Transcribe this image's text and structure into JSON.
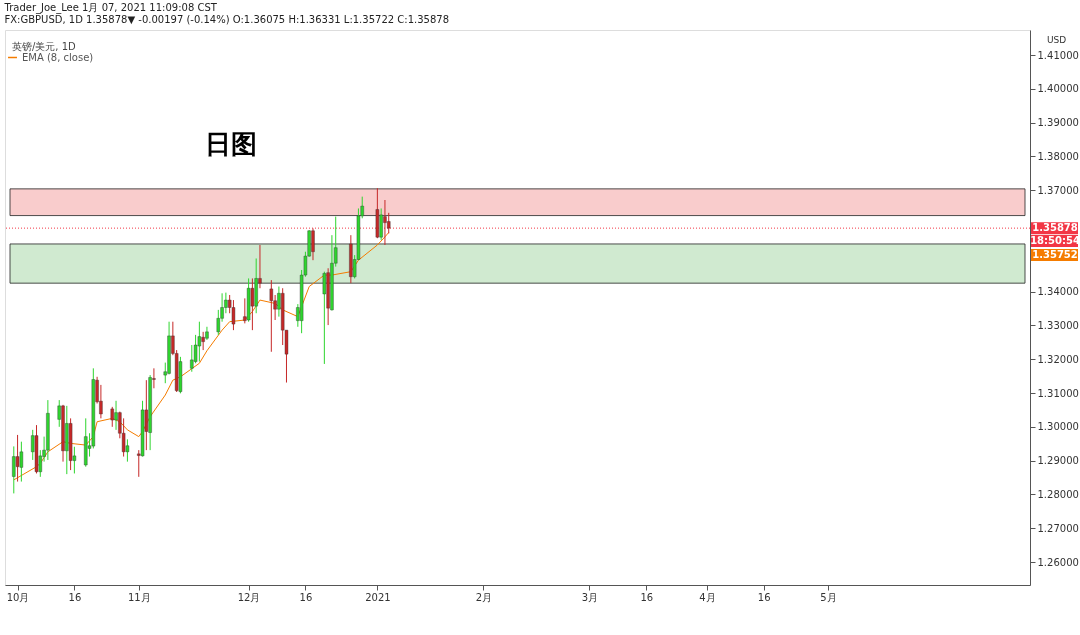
{
  "chart_data": {
    "type": "candlestick",
    "title": "Trader_Joe_Lee 1月 07, 2021 11:09:08 CST",
    "subtitle": "FX:GBPUSD, 1D 1.35878▼ -0.00197 (-0.14%) O:1.36075 H:1.36331 L:1.35722 C:1.35878",
    "ylabel": "USD",
    "x": [
      "2020-09-30",
      "2020-10-01",
      "2020-10-02",
      "2020-10-05",
      "2020-10-06",
      "2020-10-07",
      "2020-10-08",
      "2020-10-09",
      "2020-10-12",
      "2020-10-13",
      "2020-10-14",
      "2020-10-15",
      "2020-10-16",
      "2020-10-19",
      "2020-10-20",
      "2020-10-21",
      "2020-10-22",
      "2020-10-23",
      "2020-10-26",
      "2020-10-27",
      "2020-10-28",
      "2020-10-29",
      "2020-10-30",
      "2020-11-02",
      "2020-11-03",
      "2020-11-04",
      "2020-11-05",
      "2020-11-06",
      "2020-11-09",
      "2020-11-10",
      "2020-11-11",
      "2020-11-12",
      "2020-11-13",
      "2020-11-16",
      "2020-11-17",
      "2020-11-18",
      "2020-11-19",
      "2020-11-20",
      "2020-11-23",
      "2020-11-24",
      "2020-11-25",
      "2020-11-26",
      "2020-11-27",
      "2020-11-30",
      "2020-12-01",
      "2020-12-02",
      "2020-12-03",
      "2020-12-04",
      "2020-12-07",
      "2020-12-08",
      "2020-12-09",
      "2020-12-10",
      "2020-12-11",
      "2020-12-14",
      "2020-12-15",
      "2020-12-16",
      "2020-12-17",
      "2020-12-18",
      "2020-12-21",
      "2020-12-22",
      "2020-12-23",
      "2020-12-24",
      "2020-12-28",
      "2020-12-29",
      "2020-12-30",
      "2020-12-31",
      "2021-01-04",
      "2021-01-05",
      "2021-01-06",
      "2021-01-07"
    ],
    "ohlc": [
      [
        1.2853,
        1.2942,
        1.2803,
        1.2912
      ],
      [
        1.2912,
        1.2976,
        1.2838,
        1.2882
      ],
      [
        1.288,
        1.2956,
        1.2838,
        1.2926
      ],
      [
        1.2926,
        1.2991,
        1.2902,
        1.2974
      ],
      [
        1.2974,
        1.3005,
        1.2862,
        1.2867
      ],
      [
        1.2867,
        1.2931,
        1.2852,
        1.2914
      ],
      [
        1.2912,
        1.2971,
        1.2897,
        1.2931
      ],
      [
        1.2931,
        1.3079,
        1.2902,
        1.304
      ],
      [
        1.3022,
        1.3079,
        1.3,
        1.3062
      ],
      [
        1.3062,
        1.3065,
        1.2897,
        1.2929
      ],
      [
        1.2929,
        1.3062,
        1.286,
        1.301
      ],
      [
        1.301,
        1.3025,
        1.2872,
        1.29
      ],
      [
        1.29,
        1.2941,
        1.2862,
        1.2914
      ],
      [
        1.2887,
        1.3025,
        1.2882,
        1.2971
      ],
      [
        1.2936,
        1.2981,
        1.2912,
        1.2944
      ],
      [
        1.2943,
        1.3173,
        1.2936,
        1.314
      ],
      [
        1.3138,
        1.3148,
        1.3069,
        1.3074
      ],
      [
        1.3076,
        1.3124,
        1.3025,
        1.3038
      ],
      [
        1.3053,
        1.3059,
        1.3,
        1.302
      ],
      [
        1.302,
        1.3077,
        1.2991,
        1.3042
      ],
      [
        1.3042,
        1.3045,
        1.2966,
        1.2981
      ],
      [
        1.2981,
        1.3025,
        1.2912,
        1.2926
      ],
      [
        1.2926,
        1.2963,
        1.2897,
        1.2944
      ],
      [
        1.292,
        1.2931,
        1.2852,
        1.2915
      ],
      [
        1.2914,
        1.3077,
        1.2912,
        1.305
      ],
      [
        1.305,
        1.3138,
        1.2931,
        1.2986
      ],
      [
        1.2983,
        1.3153,
        1.2931,
        1.3146
      ],
      [
        1.3143,
        1.3173,
        1.3114,
        1.314
      ],
      [
        1.3153,
        1.319,
        1.3129,
        1.3163
      ],
      [
        1.3158,
        1.3311,
        1.3155,
        1.3269
      ],
      [
        1.3269,
        1.3311,
        1.3212,
        1.3217
      ],
      [
        1.3217,
        1.3227,
        1.3103,
        1.3107
      ],
      [
        1.3104,
        1.3207,
        1.3099,
        1.3193
      ],
      [
        1.3173,
        1.3242,
        1.3163,
        1.3198
      ],
      [
        1.3193,
        1.3272,
        1.3188,
        1.3242
      ],
      [
        1.3239,
        1.3311,
        1.3193,
        1.3267
      ],
      [
        1.3265,
        1.3281,
        1.3227,
        1.3252
      ],
      [
        1.3262,
        1.3296,
        1.3257,
        1.3281
      ],
      [
        1.3281,
        1.3346,
        1.3272,
        1.3321
      ],
      [
        1.3321,
        1.3395,
        1.3311,
        1.3353
      ],
      [
        1.3353,
        1.3397,
        1.3336,
        1.3375
      ],
      [
        1.3375,
        1.339,
        1.3336,
        1.3353
      ],
      [
        1.3353,
        1.3375,
        1.3286,
        1.3304
      ],
      [
        1.3326,
        1.338,
        1.3306,
        1.3314
      ],
      [
        1.3316,
        1.3439,
        1.3311,
        1.341
      ],
      [
        1.341,
        1.3439,
        1.3286,
        1.3357
      ],
      [
        1.3357,
        1.3498,
        1.3336,
        1.3439
      ],
      [
        1.3439,
        1.3538,
        1.341,
        1.3425
      ],
      [
        1.3408,
        1.3434,
        1.3222,
        1.3373
      ],
      [
        1.3373,
        1.339,
        1.3316,
        1.3348
      ],
      [
        1.3348,
        1.3415,
        1.3326,
        1.3395
      ],
      [
        1.3395,
        1.341,
        1.3242,
        1.3286
      ],
      [
        1.3286,
        1.3286,
        1.3131,
        1.3215
      ],
      [
        1.3314,
        1.3363,
        1.3296,
        1.3353
      ],
      [
        1.3314,
        1.3464,
        1.3277,
        1.3449
      ],
      [
        1.3449,
        1.3518,
        1.3444,
        1.3505
      ],
      [
        1.3505,
        1.3582,
        1.3503,
        1.358
      ],
      [
        1.358,
        1.3587,
        1.3493,
        1.3518
      ],
      [
        1.3393,
        1.3459,
        1.3186,
        1.3454
      ],
      [
        1.3456,
        1.3469,
        1.3301,
        1.3351
      ],
      [
        1.3346,
        1.3567,
        1.3344,
        1.3484
      ],
      [
        1.3484,
        1.3622,
        1.3474,
        1.353
      ],
      [
        1.3541,
        1.3567,
        1.3425,
        1.3444
      ],
      [
        1.3444,
        1.3508,
        1.3439,
        1.3495
      ],
      [
        1.3495,
        1.3646,
        1.3493,
        1.3624
      ],
      [
        1.3624,
        1.3681,
        1.3617,
        1.3653
      ],
      [
        1.3643,
        1.3706,
        1.3558,
        1.3561
      ],
      [
        1.3561,
        1.3646,
        1.3553,
        1.3627
      ],
      [
        1.3622,
        1.3671,
        1.3538,
        1.3604
      ],
      [
        1.36075,
        1.36331,
        1.35722,
        1.35878
      ]
    ],
    "colors": [
      "#2ed52e",
      "#c62828",
      "#2ed52e",
      "#2ed52e",
      "#c62828",
      "#2ed52e",
      "#2ed52e",
      "#2ed52e",
      "#2ed52e",
      "#c62828",
      "#2ed52e",
      "#c62828",
      "#2ed52e",
      "#2ed52e",
      "#2ed52e",
      "#2ed52e",
      "#c62828",
      "#c62828",
      "#c62828",
      "#2ed52e",
      "#c62828",
      "#c62828",
      "#2ed52e",
      "#c62828",
      "#2ed52e",
      "#c62828",
      "#2ed52e",
      "#c62828",
      "#2ed52e",
      "#2ed52e",
      "#c62828",
      "#c62828",
      "#2ed52e",
      "#2ed52e",
      "#2ed52e",
      "#2ed52e",
      "#c62828",
      "#2ed52e",
      "#2ed52e",
      "#2ed52e",
      "#2ed52e",
      "#c62828",
      "#c62828",
      "#c62828",
      "#2ed52e",
      "#c62828",
      "#2ed52e",
      "#c62828",
      "#c62828",
      "#c62828",
      "#2ed52e",
      "#c62828",
      "#c62828",
      "#2ed52e",
      "#2ed52e",
      "#2ed52e",
      "#2ed52e",
      "#c62828",
      "#2ed52e",
      "#c62828",
      "#2ed52e",
      "#2ed52e",
      "#c62828",
      "#2ed52e",
      "#2ed52e",
      "#2ed52e",
      "#c62828",
      "#2ed52e",
      "#c62828",
      "#c62828"
    ],
    "series": [
      {
        "name": "EMA (8, close)",
        "type": "line",
        "color": "#f57c00",
        "x": [
          "2020-09-30",
          "2020-10-06",
          "2020-10-07",
          "2020-10-09",
          "2020-10-13",
          "2020-10-15",
          "2020-10-19",
          "2020-10-21",
          "2020-10-22",
          "2020-10-26",
          "2020-10-28",
          "2020-10-30",
          "2020-11-02",
          "2020-11-03",
          "2020-11-05",
          "2020-11-09",
          "2020-11-11",
          "2020-11-13",
          "2020-11-18",
          "2020-11-20",
          "2020-11-24",
          "2020-11-26",
          "2020-11-30",
          "2020-12-02",
          "2020-12-04",
          "2020-12-08",
          "2020-12-10",
          "2020-12-14",
          "2020-12-17",
          "2020-12-21",
          "2020-12-23",
          "2020-12-28",
          "2020-12-30",
          "2021-01-04",
          "2021-01-06",
          "2021-01-07"
        ],
        "values": [
          1.2843,
          1.2882,
          1.2892,
          1.2926,
          1.2956,
          1.2951,
          1.2946,
          1.2971,
          1.3015,
          1.3025,
          1.3015,
          1.2991,
          1.2971,
          1.2986,
          1.303,
          1.3094,
          1.3138,
          1.3148,
          1.3188,
          1.3225,
          1.3286,
          1.3311,
          1.3316,
          1.3341,
          1.3375,
          1.3365,
          1.3346,
          1.3326,
          1.3415,
          1.3449,
          1.3449,
          1.3459,
          1.3493,
          1.3538,
          1.3562,
          1.3575
        ]
      }
    ],
    "xlim": [
      "2020-09-29",
      "2021-06-24"
    ],
    "xticks": [
      {
        "value": "2020-10-01",
        "label": "10月"
      },
      {
        "value": "2020-10-16",
        "label": "16"
      },
      {
        "value": "2020-11-02",
        "label": "11月"
      },
      {
        "value": "2020-12-01",
        "label": "12月"
      },
      {
        "value": "2020-12-16",
        "label": "16"
      },
      {
        "value": "2021-01-04",
        "label": "2021"
      },
      {
        "value": "2021-02-01",
        "label": "2月"
      },
      {
        "value": "2021-03-01",
        "label": "3月"
      },
      {
        "value": "2021-03-16",
        "label": "16"
      },
      {
        "value": "2021-04-01",
        "label": "4月"
      },
      {
        "value": "2021-04-16",
        "label": "16"
      },
      {
        "value": "2021-05-03",
        "label": "5月"
      }
    ],
    "ylim": [
      1.2532,
      1.4174
    ],
    "yticks": [
      {
        "value": 1.26,
        "label": "1.26000"
      },
      {
        "value": 1.27,
        "label": "1.27000"
      },
      {
        "value": 1.28,
        "label": "1.28000"
      },
      {
        "value": 1.29,
        "label": "1.29000"
      },
      {
        "value": 1.3,
        "label": "1.30000"
      },
      {
        "value": 1.31,
        "label": "1.31000"
      },
      {
        "value": 1.32,
        "label": "1.32000"
      },
      {
        "value": 1.33,
        "label": "1.33000"
      },
      {
        "value": 1.34,
        "label": "1.34000"
      },
      {
        "value": 1.37,
        "label": "1.37000"
      },
      {
        "value": 1.38,
        "label": "1.38000"
      },
      {
        "value": 1.39,
        "label": "1.39000"
      },
      {
        "value": 1.4,
        "label": "1.40000"
      },
      {
        "value": 1.41,
        "label": "1.41000"
      }
    ],
    "ref_lines": [
      {
        "axis": "y",
        "value": 1.35878,
        "label": "1.35878",
        "color": "#f23645",
        "line_style": "dotted"
      }
    ],
    "bands": [
      {
        "axis": "y",
        "from": 1.3625,
        "to": 1.3704,
        "color": "#f4a3a3"
      },
      {
        "axis": "y",
        "from": 1.3425,
        "to": 1.3541,
        "color": "#a9d8a9"
      }
    ],
    "annotations": [
      "英镑/美元, 1D",
      "日图",
      "18:50:54",
      "1.35752"
    ],
    "legend": "top left",
    "grid": false
  }
}
